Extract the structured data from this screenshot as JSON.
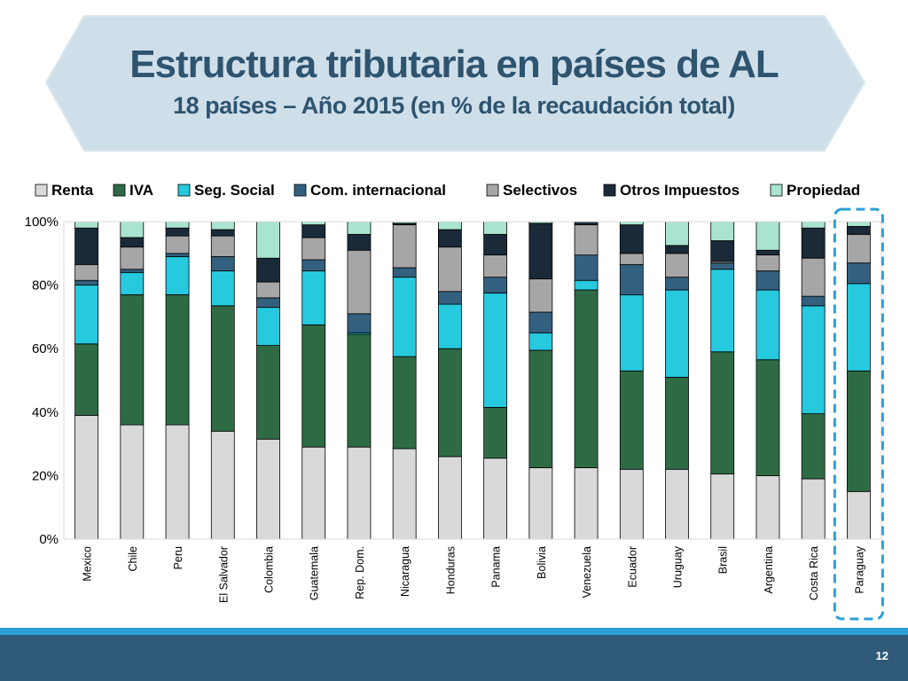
{
  "slide": {
    "title": "Estructura tributaria en países de AL",
    "subtitle": "18 países – Año 2015 (en % de la recaudación total)",
    "page_number": "12"
  },
  "colors": {
    "title": "#2e5470",
    "banner_fill": "#cfdfea",
    "footer": "#2f5a78",
    "footer_line": "#2d9fd8",
    "highlight": "#2d9fd8"
  },
  "chart_data": {
    "type": "bar",
    "stacked": true,
    "title": "",
    "xlabel": "",
    "ylabel": "",
    "ylim": [
      0,
      100
    ],
    "yticks": [
      "0%",
      "20%",
      "40%",
      "60%",
      "80%",
      "100%"
    ],
    "legend_position": "top",
    "highlighted_category": "Paraguay",
    "categories": [
      "Mexico",
      "Chile",
      "Peru",
      "El Salvador",
      "Colombia",
      "Guatemala",
      "Rep. Dom.",
      "Nicaragua",
      "Honduras",
      "Panama",
      "Bolivia",
      "Venezuela",
      "Ecuador",
      "Uruguay",
      "Brasil",
      "Argentina",
      "Costa Rica",
      "Paraguay"
    ],
    "series": [
      {
        "name": "Renta",
        "color": "#d9d9d9",
        "values": [
          39,
          36,
          36,
          34,
          31.5,
          29,
          29,
          28.5,
          26,
          25.5,
          22.5,
          22.5,
          22,
          22,
          20.5,
          20,
          19,
          15
        ]
      },
      {
        "name": "IVA",
        "color": "#2e6b45",
        "values": [
          22.5,
          41,
          41,
          39.5,
          29.5,
          38.5,
          35.5,
          29,
          34,
          16,
          37,
          56,
          31,
          29,
          38.5,
          36.5,
          20.5,
          38
        ]
      },
      {
        "name": "Seg. Social",
        "color": "#26c9de",
        "values": [
          18.5,
          7,
          12,
          11,
          12,
          17,
          0.5,
          25,
          14,
          36,
          5.5,
          3,
          24,
          27.5,
          26,
          22,
          34,
          27.5
        ]
      },
      {
        "name": "Com. internacional",
        "color": "#33607f",
        "values": [
          1.5,
          1,
          1,
          4.5,
          3,
          3.5,
          6,
          3,
          4,
          5,
          6.5,
          8,
          9.5,
          4,
          2,
          6,
          3,
          6.5
        ]
      },
      {
        "name": "Selectivos",
        "color": "#a6a6a6",
        "values": [
          5,
          7,
          5.5,
          6.5,
          5,
          7,
          20,
          13.5,
          14,
          7,
          10.5,
          9.5,
          3.5,
          7.5,
          0.5,
          5,
          12,
          9
        ]
      },
      {
        "name": "Otros Impuestos",
        "color": "#1a2a38",
        "values": [
          11.5,
          3,
          2.5,
          2,
          7.5,
          4,
          5,
          0.5,
          5.5,
          6.5,
          17.5,
          1,
          9,
          2.5,
          6.5,
          1.5,
          9.5,
          2.5
        ]
      },
      {
        "name": "Propiedad",
        "color": "#a8e4d0",
        "values": [
          2,
          5,
          2,
          2.5,
          11.5,
          1,
          4,
          0.5,
          2.5,
          4,
          0.5,
          0,
          1,
          7.5,
          6,
          9,
          2,
          1.5
        ]
      }
    ]
  }
}
